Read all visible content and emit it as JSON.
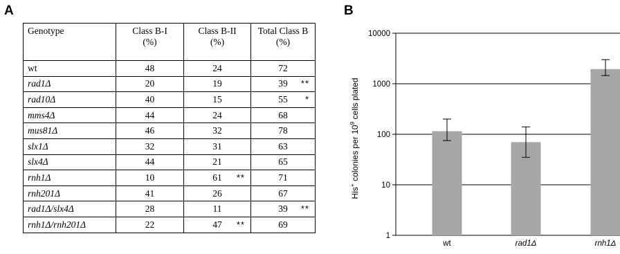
{
  "panel_a": {
    "letter": "A",
    "table": {
      "headers": [
        {
          "line1": "Genotype",
          "line2": ""
        },
        {
          "line1": "Class B-I",
          "line2": "(%)"
        },
        {
          "line1": "Class B-II",
          "line2": "(%)"
        },
        {
          "line1": "Total Class B",
          "line2": "(%)"
        }
      ],
      "rows": [
        {
          "genotype": "wt",
          "italic": false,
          "b1": "48",
          "b2": "24",
          "b2_sig": "",
          "total": "72",
          "total_sig": ""
        },
        {
          "genotype": "rad1Δ",
          "italic": true,
          "b1": "20",
          "b2": "19",
          "b2_sig": "",
          "total": "39",
          "total_sig": "**"
        },
        {
          "genotype": "rad10Δ",
          "italic": true,
          "b1": "40",
          "b2": "15",
          "b2_sig": "",
          "total": "55",
          "total_sig": "*"
        },
        {
          "genotype": "mms4Δ",
          "italic": true,
          "b1": "44",
          "b2": "24",
          "b2_sig": "",
          "total": "68",
          "total_sig": ""
        },
        {
          "genotype": "mus81Δ",
          "italic": true,
          "b1": "46",
          "b2": "32",
          "b2_sig": "",
          "total": "78",
          "total_sig": ""
        },
        {
          "genotype": "slx1Δ",
          "italic": true,
          "b1": "32",
          "b2": "31",
          "b2_sig": "",
          "total": "63",
          "total_sig": ""
        },
        {
          "genotype": "slx4Δ",
          "italic": true,
          "b1": "44",
          "b2": "21",
          "b2_sig": "",
          "total": "65",
          "total_sig": ""
        },
        {
          "genotype": "rnh1Δ",
          "italic": true,
          "b1": "10",
          "b2": "61",
          "b2_sig": "**",
          "total": "71",
          "total_sig": ""
        },
        {
          "genotype": "rnh201Δ",
          "italic": true,
          "b1": "41",
          "b2": "26",
          "b2_sig": "",
          "total": "67",
          "total_sig": ""
        },
        {
          "genotype": "rad1Δ/slx4Δ",
          "italic": true,
          "b1": "28",
          "b2": "11",
          "b2_sig": "",
          "total": "39",
          "total_sig": "**"
        },
        {
          "genotype": "rnh1Δ/rnh201Δ",
          "italic": true,
          "b1": "22",
          "b2": "47",
          "b2_sig": "**",
          "total": "69",
          "total_sig": ""
        }
      ]
    }
  },
  "panel_b": {
    "letter": "B",
    "bar_color": "#a6a6a6",
    "chart_data": {
      "type": "bar",
      "categories": [
        "wt",
        "rad1Δ",
        "rnh1Δ"
      ],
      "category_italic": [
        false,
        true,
        true
      ],
      "values": [
        115,
        70,
        1950
      ],
      "error_low": [
        75,
        35,
        1450
      ],
      "error_high": [
        200,
        140,
        3000
      ],
      "ylabel_main": "His",
      "ylabel_sup": "+",
      "ylabel_mid": " colonies per 10",
      "ylabel_sup2": "9",
      "ylabel_end": " cells plated",
      "yscale": "log",
      "ylim": [
        1,
        10000
      ],
      "yticks": [
        1,
        10,
        100,
        1000,
        10000
      ],
      "ytick_labels": [
        "1",
        "10",
        "100",
        "1000",
        "10000"
      ],
      "grid": true
    }
  }
}
